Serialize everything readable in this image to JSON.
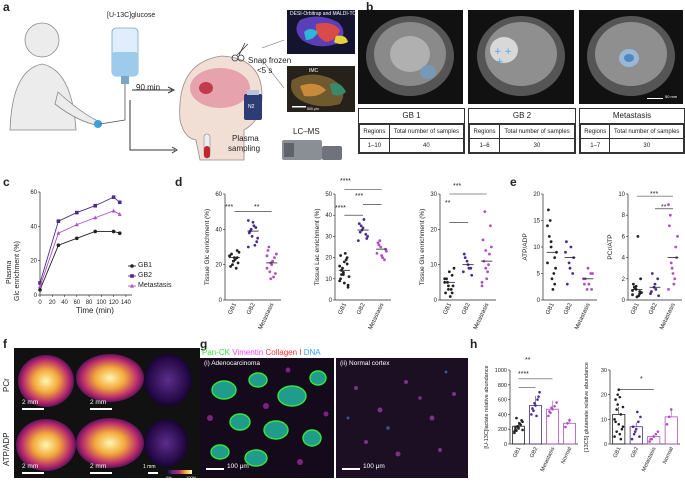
{
  "panels": {
    "a": "a",
    "b": "b",
    "c": "c",
    "d": "d",
    "e": "e",
    "f": "f",
    "g": "g",
    "h": "h"
  },
  "a": {
    "infusion_label": "[U-13C]glucose",
    "time_label": "90 min",
    "snap_label": "Snap frozen",
    "snap_sub": "<5 s",
    "plasma_label": "Plasma",
    "plasma_label2": "sampling",
    "desi_label": "DESI-Orbitrap and MALDI-TOF",
    "imc_label": "IMC",
    "lcms_label": "LC–MS",
    "n2_label": "N2",
    "scale_label": "500 μm"
  },
  "b": {
    "scale_label": "50 mm",
    "groups": [
      {
        "title": "GB 1",
        "regions_label": "Regions",
        "samples_label": "Total number of samples",
        "regions": "1–10",
        "samples": "40"
      },
      {
        "title": "GB 2",
        "regions_label": "Regions",
        "samples_label": "Total number of samples",
        "regions": "1–6",
        "samples": "30"
      },
      {
        "title": "Metastasis",
        "regions_label": "Regions",
        "samples_label": "Total number of samples",
        "regions": "1–7",
        "samples": "30"
      }
    ]
  },
  "c": {
    "ylabel1": "Plasma",
    "ylabel2": "Glc enrichment (%)",
    "xlabel": "Time (min)",
    "legend": [
      "GB1",
      "GB2",
      "Metastasis"
    ]
  },
  "d": {
    "sig1a": "***",
    "sig1b": "**",
    "sig2a": "****",
    "sig2b": "***",
    "sig2c": "****",
    "sig3a": "***",
    "sig3b": "**"
  },
  "e": {
    "sig1": "***",
    "sig2": "**"
  },
  "f": {
    "row1": "PCr",
    "row2": "ATP/ADP",
    "scale1": "2 mm",
    "scale2": "2 mm",
    "scale3": "2 mm",
    "scale4": "2 mm",
    "scale5": "1 mm",
    "cbar_min": "0%",
    "cbar_max": "100%"
  },
  "g": {
    "legend": [
      {
        "text": "Pan-CK",
        "color": "#39e639"
      },
      {
        "text": "Vimentin",
        "color": "#ff40ff"
      },
      {
        "text": "Collagen I",
        "color": "#ff3030"
      },
      {
        "text": "DNA",
        "color": "#3aa0ff"
      }
    ],
    "sub1": "(i) Adenocarcinoma",
    "sub2": "(ii) Normal cortex",
    "scale1": "100 μm",
    "scale2": "100 μm"
  },
  "h": {
    "sig1": "**",
    "sig2": "****",
    "sig3": "*"
  },
  "chart_data": [
    {
      "id": "c",
      "type": "line",
      "title": "",
      "xlabel": "Time (min)",
      "ylabel": "Plasma Glc enrichment (%)",
      "xlim": [
        0,
        150
      ],
      "ylim": [
        0,
        60
      ],
      "xticks": [
        0,
        20,
        40,
        60,
        80,
        100,
        120,
        140
      ],
      "yticks": [
        0,
        20,
        40,
        60
      ],
      "legend_position": "right",
      "series": [
        {
          "name": "GB1",
          "color": "#222222",
          "marker": "circle",
          "x": [
            0,
            30,
            60,
            90,
            120,
            130
          ],
          "y": [
            3,
            29,
            33,
            37,
            37,
            36
          ]
        },
        {
          "name": "GB2",
          "color": "#4b2b8c",
          "marker": "square",
          "x": [
            0,
            30,
            60,
            90,
            120,
            130
          ],
          "y": [
            7,
            43,
            48,
            52,
            57,
            54
          ]
        },
        {
          "name": "Metastasis",
          "color": "#b04fbf",
          "marker": "triangle",
          "x": [
            0,
            30,
            60,
            90,
            120,
            130
          ],
          "y": [
            5,
            36,
            41,
            45,
            49,
            47
          ]
        }
      ]
    },
    {
      "id": "d1",
      "type": "scatter",
      "ylabel": "Tissue Glc enrichment (%)",
      "ylim": [
        0,
        60
      ],
      "yticks": [
        0,
        20,
        40,
        60
      ],
      "categories": [
        "GB1",
        "GB2",
        "Metastasis"
      ],
      "colors": [
        "#222222",
        "#4b2b8c",
        "#b04fbf"
      ],
      "values": [
        [
          25,
          22,
          28,
          19,
          24,
          21,
          26,
          23,
          27,
          20,
          18,
          25,
          22,
          24
        ],
        [
          30,
          36,
          41,
          38,
          44,
          33,
          39,
          42,
          35,
          40,
          31,
          45
        ],
        [
          18,
          12,
          24,
          28,
          20,
          15,
          30,
          22,
          26,
          16,
          13,
          25,
          21
        ]
      ]
    },
    {
      "id": "d2",
      "type": "scatter",
      "ylabel": "Tissue Lac enrichment (%)",
      "ylim": [
        0,
        50
      ],
      "yticks": [
        0,
        10,
        20,
        30,
        40,
        50
      ],
      "categories": [
        "GB1",
        "GB2",
        "Metastasis"
      ],
      "colors": [
        "#222222",
        "#4b2b8c",
        "#b04fbf"
      ],
      "values": [
        [
          16,
          12,
          20,
          10,
          18,
          7,
          14,
          22,
          11,
          15,
          19,
          9,
          13,
          17,
          21,
          8,
          6,
          12
        ],
        [
          28,
          33,
          31,
          36,
          34,
          29,
          32,
          38,
          30,
          35
        ],
        [
          22,
          25,
          19,
          27,
          21,
          24,
          26,
          20,
          23,
          28
        ]
      ]
    },
    {
      "id": "d3",
      "type": "scatter",
      "ylabel": "Tissue Glu enrichment (%)",
      "ylim": [
        0,
        30
      ],
      "yticks": [
        0,
        10,
        20,
        30
      ],
      "categories": [
        "GB1",
        "GB2",
        "Metastasis"
      ],
      "colors": [
        "#222222",
        "#4b2b8c",
        "#b04fbf"
      ],
      "values": [
        [
          5,
          3,
          7,
          2,
          8,
          4,
          6,
          1,
          9,
          5,
          3,
          6,
          4,
          2
        ],
        [
          8,
          11,
          9,
          13,
          10,
          7,
          12,
          9
        ],
        [
          4,
          9,
          13,
          17,
          6,
          21,
          11,
          8,
          15,
          25,
          10,
          5,
          14
        ]
      ]
    },
    {
      "id": "e1",
      "type": "scatter",
      "ylabel": "ATP/ADP",
      "ylim": [
        0,
        20
      ],
      "yticks": [
        0,
        5,
        10,
        15,
        20
      ],
      "categories": [
        "GB1",
        "GB2",
        "Metastasis"
      ],
      "colors": [
        "#222222",
        "#4b2b8c",
        "#b04fbf"
      ],
      "values": [
        [
          14,
          11,
          8,
          17,
          4,
          6,
          12,
          2,
          9,
          15,
          5,
          7,
          10,
          3
        ],
        [
          9,
          7,
          5,
          11,
          6,
          8,
          3,
          10
        ],
        [
          4,
          2,
          5,
          3,
          6,
          2,
          4,
          3,
          5
        ]
      ]
    },
    {
      "id": "e2",
      "type": "scatter",
      "ylabel": "PCr/ATP",
      "ylim": [
        0,
        10
      ],
      "yticks": [
        0,
        2,
        4,
        6,
        8,
        10
      ],
      "categories": [
        "GB1",
        "GB2",
        "Metastasis"
      ],
      "colors": [
        "#222222",
        "#4b2b8c",
        "#b04fbf"
      ],
      "values": [
        [
          0.5,
          1,
          0.8,
          1.5,
          0.3,
          2,
          1.2,
          6,
          0.7,
          1.1,
          0.4,
          0.9,
          1.3,
          0.6
        ],
        [
          0.6,
          1.2,
          2,
          0.8,
          1.5,
          0.4,
          2.5,
          1
        ],
        [
          1,
          3,
          5,
          7,
          2.5,
          4,
          8,
          1.5,
          6,
          3.5,
          2,
          9
        ]
      ]
    },
    {
      "id": "h1",
      "type": "bar",
      "ylabel": "[U-13C]lactate relative abundance",
      "ylim": [
        0,
        1000
      ],
      "yticks": [
        0,
        200,
        400,
        600,
        800,
        1000
      ],
      "categories": [
        "GB1",
        "GB2",
        "Metastasis",
        "Normal"
      ],
      "colors": [
        "#222222",
        "#4b2b8c",
        "#b04fbf",
        "#b04fbf"
      ],
      "values": [
        240,
        520,
        470,
        280
      ],
      "points": [
        [
          150,
          180,
          220,
          260,
          300,
          200,
          240,
          280,
          320,
          170,
          350,
          210,
          260,
          190,
          230
        ],
        [
          400,
          450,
          520,
          600,
          700,
          480,
          550,
          380,
          640
        ],
        [
          380,
          420,
          470,
          510,
          560,
          440,
          490
        ],
        [
          230,
          280,
          320
        ]
      ]
    },
    {
      "id": "h2",
      "type": "bar",
      "ylabel": "[13C5] glutamate relative abundance",
      "ylim": [
        0,
        30
      ],
      "yticks": [
        0,
        10,
        20,
        30
      ],
      "categories": [
        "GB1",
        "GB2",
        "Metastasis",
        "Normal"
      ],
      "colors": [
        "#222222",
        "#4b2b8c",
        "#b04fbf",
        "#b04fbf"
      ],
      "values": [
        12,
        7,
        3,
        11
      ],
      "points": [
        [
          3,
          5,
          8,
          12,
          15,
          18,
          20,
          4,
          6,
          10,
          14,
          22,
          2,
          7,
          9,
          16,
          19
        ],
        [
          2,
          4,
          6,
          9,
          11,
          7,
          5,
          13,
          3
        ],
        [
          1,
          2,
          3,
          4,
          5,
          2
        ],
        [
          8,
          11,
          14
        ]
      ]
    }
  ]
}
